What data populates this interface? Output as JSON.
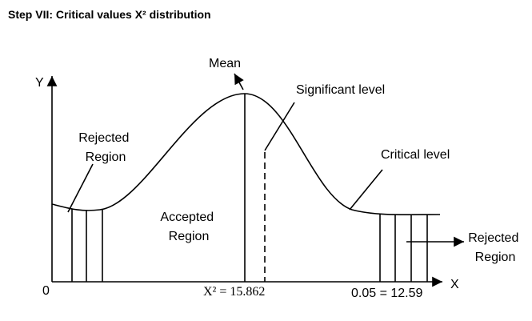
{
  "title": "Step VII: Critical values X² distribution",
  "axes": {
    "y_label": "Y",
    "x_label": "X",
    "origin": "0"
  },
  "labels": {
    "mean": "Mean",
    "significant": "Significant level",
    "rejected_left": [
      "Rejected",
      "Region"
    ],
    "critical": "Critical level",
    "accepted": [
      "Accepted",
      "Region"
    ],
    "rejected_right": [
      "Rejected",
      "Region"
    ],
    "chi_value": "X² = 15.862",
    "table_value": "0.05 = 12.59"
  }
}
